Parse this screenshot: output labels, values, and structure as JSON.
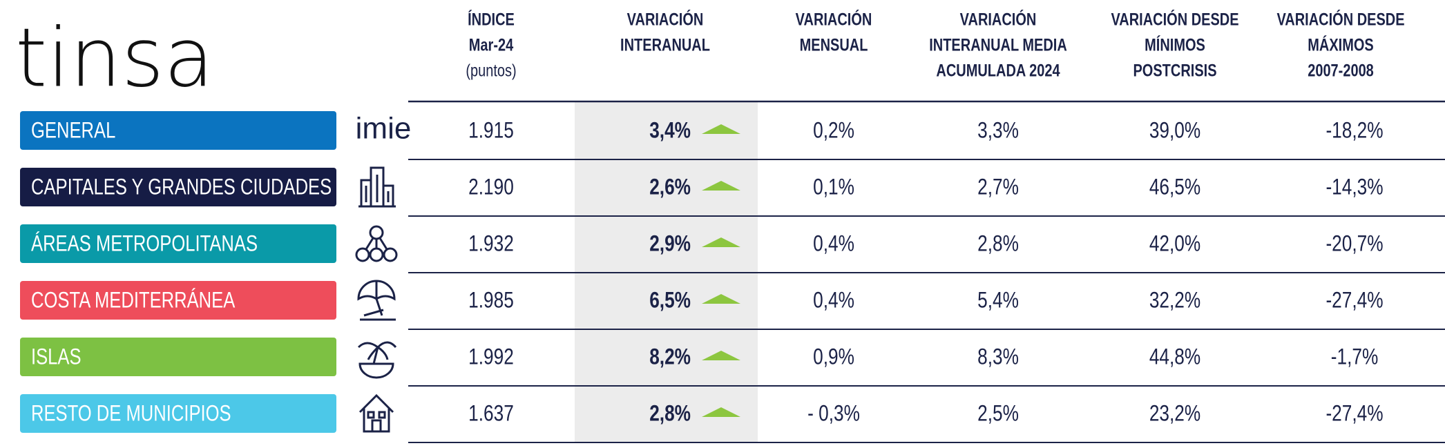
{
  "logo": "tinsa",
  "headers": [
    [
      "ÍNDICE",
      "Mar-24",
      "(puntos)"
    ],
    [
      "VARIACIÓN",
      "INTERANUAL"
    ],
    [
      "VARIACIÓN",
      "MENSUAL"
    ],
    [
      "VARIACIÓN",
      "INTERANUAL MEDIA",
      "ACUMULADA 2024"
    ],
    [
      "VARIACIÓN DESDE",
      "MÍNIMOS",
      "POSTCRISIS"
    ],
    [
      "VARIACIÓN DESDE",
      "MÁXIMOS",
      "2007-2008"
    ]
  ],
  "rows": [
    {
      "label": "GENERAL",
      "color": "#0b74c0",
      "brand": "imie",
      "cells": [
        "1.915",
        "3,4%",
        "0,2%",
        "3,3%",
        "39,0%",
        "-18,2%"
      ]
    },
    {
      "label": "CAPITALES Y GRANDES CIUDADES",
      "color": "#161c45",
      "cells": [
        "2.190",
        "2,6%",
        "0,1%",
        "2,7%",
        "46,5%",
        "-14,3%"
      ]
    },
    {
      "label": "ÁREAS METROPOLITANAS",
      "color": "#0a9aa8",
      "cells": [
        "1.932",
        "2,9%",
        "0,4%",
        "2,8%",
        "42,0%",
        "-20,7%"
      ]
    },
    {
      "label": "COSTA MEDITERRÁNEA",
      "color": "#ee4d5b",
      "cells": [
        "1.985",
        "6,5%",
        "0,4%",
        "5,4%",
        "32,2%",
        "-27,4%"
      ]
    },
    {
      "label": "ISLAS",
      "color": "#7dc143",
      "cells": [
        "1.992",
        "8,2%",
        "0,9%",
        "8,3%",
        "44,8%",
        "-1,7%"
      ]
    },
    {
      "label": "RESTO DE MUNICIPIOS",
      "color": "#4cc8e8",
      "cells": [
        "1.637",
        "2,8%",
        "- 0,3%",
        "2,5%",
        "23,2%",
        "-27,4%"
      ]
    }
  ]
}
